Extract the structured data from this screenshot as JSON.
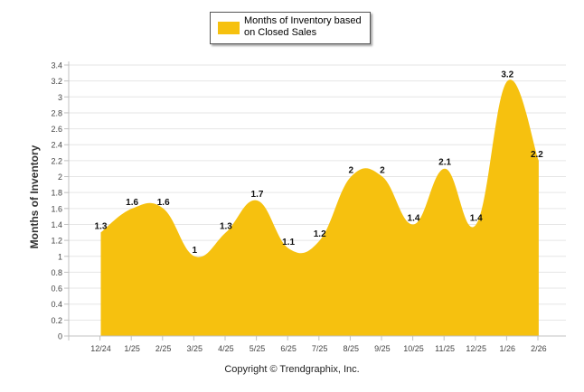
{
  "chart_data": {
    "type": "area",
    "title": "",
    "xlabel": "",
    "ylabel": "Months of Inventory",
    "ylim": [
      0,
      3.4
    ],
    "ytick_step": 0.2,
    "grid": true,
    "legend_position": "top-center",
    "series": [
      {
        "name": "Months of Inventory based on Closed Sales",
        "color": "#f6c10f",
        "values": [
          1.3,
          1.6,
          1.6,
          1.0,
          1.3,
          1.7,
          1.1,
          1.2,
          2.0,
          2.0,
          1.4,
          2.1,
          1.4,
          3.2,
          2.2
        ]
      }
    ],
    "categories": [
      "12/24",
      "1/25",
      "2/25",
      "3/25",
      "4/25",
      "5/25",
      "6/25",
      "7/25",
      "8/25",
      "9/25",
      "10/25",
      "11/25",
      "12/25",
      "1/26",
      "2/26"
    ],
    "data_labels": [
      "1.3",
      "1.6",
      "1.6",
      "1",
      "1.3",
      "1.7",
      "1.1",
      "1.2",
      "2",
      "2",
      "1.4",
      "2.1",
      "1.4",
      "3.2",
      "2.2"
    ],
    "y_tick_labels": [
      "0",
      "0.2",
      "0.4",
      "0.6",
      "0.8",
      "1",
      "1.2",
      "1.4",
      "1.6",
      "1.8",
      "2",
      "2.2",
      "2.4",
      "2.6",
      "2.8",
      "3",
      "3.2",
      "3.4"
    ]
  },
  "legend": {
    "label": "Months of Inventory based on Closed Sales"
  },
  "footer": {
    "copyright": "Copyright © Trendgraphix, Inc."
  },
  "colors": {
    "fill": "#f6c10f",
    "grid": "#e6e6e6",
    "axis": "#c0c0c0"
  }
}
